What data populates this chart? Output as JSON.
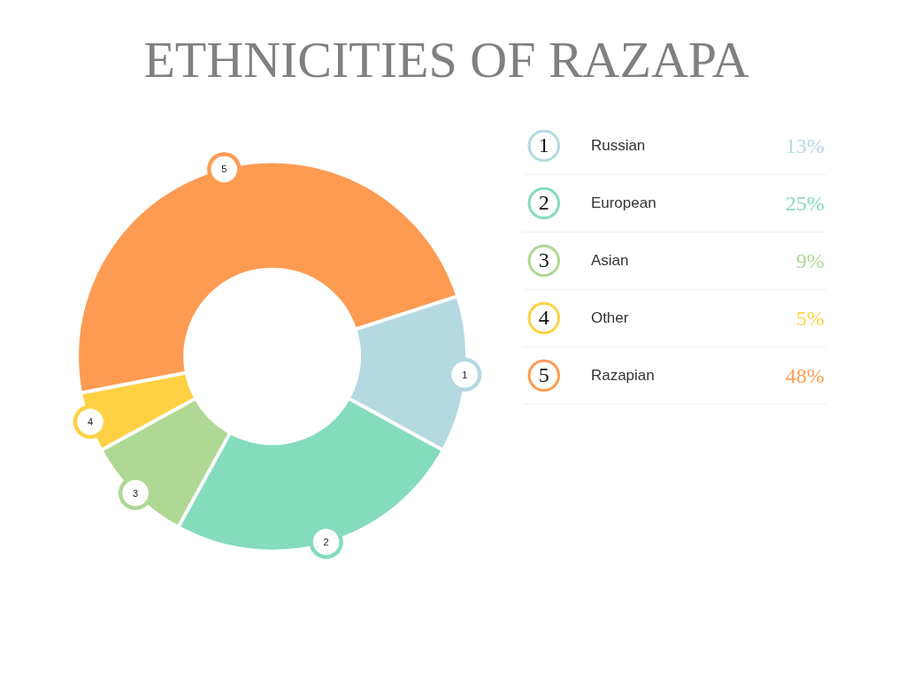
{
  "chart_data": {
    "type": "donut",
    "title": "ETHNICITIES OF RAZAPA",
    "categories": [
      "Russian",
      "European",
      "Asian",
      "Other",
      "Razapian"
    ],
    "values": [
      13,
      25,
      9,
      5,
      48
    ],
    "colors": [
      "#b5d9e1",
      "#84dcbd",
      "#aed893",
      "#fed144",
      "#fe9b52"
    ],
    "value_labels": [
      "13%",
      "25%",
      "9%",
      "5%",
      "48%"
    ],
    "annotations": [
      "1",
      "2",
      "3",
      "4",
      "5"
    ],
    "legend": "right"
  }
}
